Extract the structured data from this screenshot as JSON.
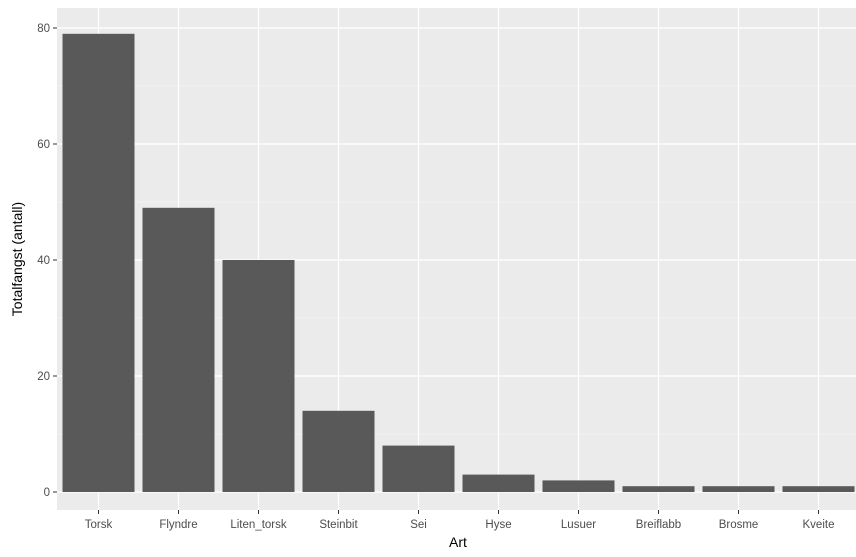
{
  "chart_data": {
    "type": "bar",
    "title": "",
    "xlabel": "Art",
    "ylabel": "Totalfangst (antall)",
    "categories": [
      "Torsk",
      "Flyndre",
      "Liten_torsk",
      "Steinbit",
      "Sei",
      "Hyse",
      "Lusuer",
      "Breiflabb",
      "Brosme",
      "Kveite"
    ],
    "values": [
      79,
      49,
      40,
      14,
      8,
      3,
      2,
      1,
      1,
      1
    ],
    "ylim": [
      0,
      80
    ],
    "yticks": [
      0,
      20,
      40,
      60,
      80
    ],
    "grid": true,
    "legend": "none",
    "colors": {
      "bar": "#595959",
      "panel": "#ebebeb",
      "grid": "#ffffff"
    }
  }
}
